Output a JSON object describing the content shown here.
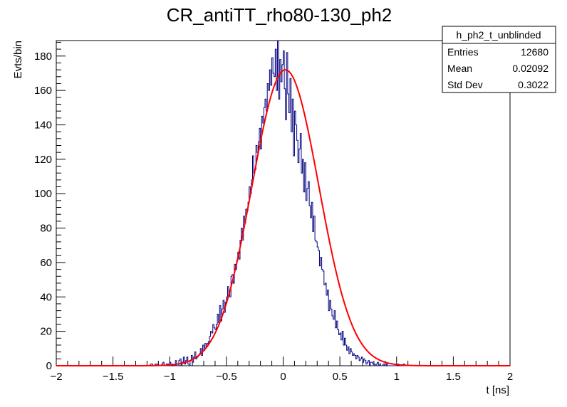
{
  "chart_data": {
    "type": "histogram",
    "title": "CR_antiTT_rho80-130_ph2",
    "xlabel": "t [ns]",
    "ylabel": "Evts/bin",
    "xlim": [
      -2,
      2
    ],
    "ylim": [
      0,
      189
    ],
    "x_ticks": [
      -2,
      -1.5,
      -1,
      -0.5,
      0,
      0.5,
      1,
      1.5,
      2
    ],
    "x_tick_labels": [
      "−2",
      "−1.5",
      "−1",
      "−0.5",
      "0",
      "0.5",
      "1",
      "1.5",
      "2"
    ],
    "y_ticks": [
      0,
      20,
      40,
      60,
      80,
      100,
      120,
      140,
      160,
      180
    ],
    "y_tick_labels": [
      "0",
      "20",
      "40",
      "60",
      "80",
      "100",
      "120",
      "140",
      "160",
      "180"
    ],
    "histogram": {
      "color": "#00007f",
      "bin_width": 0.01,
      "x_start": -1.2,
      "values": [
        0,
        0,
        0,
        1,
        1,
        0,
        0,
        1,
        0,
        1,
        0,
        0,
        0,
        1,
        2,
        0,
        0,
        1,
        1,
        0,
        2,
        0,
        1,
        0,
        0,
        3,
        0,
        0,
        3,
        4,
        0,
        2,
        5,
        1,
        3,
        5,
        1,
        0,
        3,
        6,
        2,
        5,
        8,
        4,
        5,
        6,
        7,
        10,
        6,
        12,
        9,
        13,
        11,
        13,
        14,
        17,
        20,
        19,
        24,
        22,
        21,
        24,
        30,
        25,
        35,
        26,
        33,
        38,
        31,
        37,
        40,
        46,
        42,
        40,
        52,
        53,
        48,
        59,
        56,
        61,
        66,
        62,
        73,
        80,
        73,
        87,
        83,
        91,
        90,
        95,
        104,
        100,
        108,
        122,
        112,
        114,
        128,
        124,
        130,
        138,
        126,
        145,
        141,
        150,
        155,
        148,
        164,
        160,
        172,
        163,
        179,
        170,
        168,
        184,
        160,
        189,
        155,
        178,
        165,
        175,
        183,
        161,
        143,
        182,
        158,
        147,
        167,
        136,
        155,
        122,
        148,
        140,
        131,
        118,
        126,
        135,
        112,
        120,
        101,
        118,
        96,
        103,
        107,
        93,
        86,
        95,
        78,
        87,
        73,
        72,
        69,
        67,
        58,
        63,
        56,
        55,
        47,
        48,
        41,
        44,
        32,
        38,
        33,
        29,
        27,
        32,
        22,
        26,
        21,
        18,
        19,
        15,
        20,
        12,
        16,
        12,
        9,
        11,
        7,
        10,
        8,
        6,
        7,
        6,
        4,
        6,
        5,
        3,
        4,
        5,
        2,
        4,
        3,
        1,
        2,
        3,
        0,
        2,
        2,
        1,
        1,
        0,
        1,
        2,
        0,
        1,
        0,
        0,
        1,
        0,
        0,
        1,
        0,
        0,
        0,
        0,
        0,
        0,
        0,
        0,
        0,
        1,
        0,
        0,
        0,
        0,
        1,
        0,
        0,
        0,
        0,
        0,
        0,
        0,
        0,
        0,
        0,
        0,
        0,
        0,
        0,
        0,
        0,
        0,
        0,
        0,
        0
      ]
    },
    "fit": {
      "type": "gaussian",
      "color": "#ff0000",
      "amplitude": 172,
      "mean": 0.02,
      "sigma": 0.295
    }
  },
  "stats_box": {
    "name": "h_ph2_t_unblinded",
    "rows": [
      {
        "label": "Entries",
        "value": "12680"
      },
      {
        "label": "Mean",
        "value": "0.02092"
      },
      {
        "label": "Std Dev",
        "value": "0.3022"
      }
    ]
  }
}
